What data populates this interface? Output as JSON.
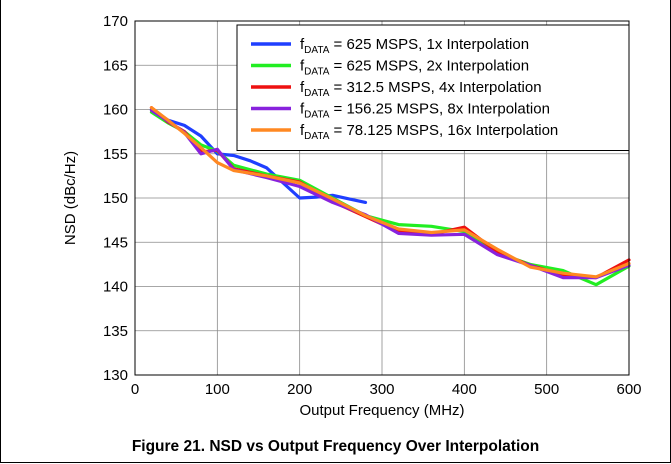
{
  "caption": "Figure 21. NSD vs Output Frequency Over Interpolation",
  "chart_data": {
    "type": "line",
    "title": "",
    "xlabel": "Output Frequency (MHz)",
    "ylabel": "NSD (dBc/Hz)",
    "xlim": [
      0,
      600
    ],
    "ylim": [
      130,
      170
    ],
    "xticks": [
      0,
      100,
      200,
      300,
      400,
      500,
      600
    ],
    "yticks": [
      130,
      135,
      140,
      145,
      150,
      155,
      160,
      165,
      170
    ],
    "grid": true,
    "legend_position": "top-right",
    "series": [
      {
        "name": "fDATA = 625 MSPS, 1x Interpolation",
        "legend": {
          "main": "f",
          "sub": "DATA",
          "rest": " = 625 MSPS, 1x Interpolation"
        },
        "color": "#1f3fff",
        "x": [
          20,
          40,
          60,
          80,
          100,
          120,
          140,
          160,
          180,
          200,
          220,
          240,
          260,
          280
        ],
        "y": [
          160.0,
          158.8,
          158.2,
          157.0,
          155.0,
          154.8,
          154.2,
          153.4,
          151.7,
          150.0,
          150.1,
          150.3,
          149.9,
          149.5
        ]
      },
      {
        "name": "fDATA = 625 MSPS, 2x Interpolation",
        "legend": {
          "main": "f",
          "sub": "DATA",
          "rest": " = 625 MSPS, 2x Interpolation"
        },
        "color": "#22ee22",
        "x": [
          20,
          40,
          60,
          80,
          100,
          120,
          160,
          200,
          240,
          280,
          320,
          360,
          400,
          440,
          480,
          520,
          560,
          600
        ],
        "y": [
          159.7,
          158.5,
          157.5,
          156.0,
          155.3,
          153.7,
          152.7,
          152.0,
          150.0,
          148.0,
          147.0,
          146.8,
          146.2,
          143.8,
          142.5,
          141.8,
          140.2,
          142.3
        ]
      },
      {
        "name": "fDATA = 312.5 MSPS, 4x Interpolation",
        "legend": {
          "main": "f",
          "sub": "DATA",
          "rest": " = 312.5 MSPS, 4x Interpolation"
        },
        "color": "#ee1111",
        "x": [
          20,
          40,
          60,
          80,
          100,
          120,
          160,
          200,
          240,
          280,
          320,
          360,
          400,
          440,
          480,
          520,
          560,
          600
        ],
        "y": [
          160.2,
          158.6,
          157.5,
          155.2,
          155.4,
          153.3,
          152.5,
          151.8,
          149.6,
          147.9,
          146.2,
          145.9,
          146.7,
          143.9,
          142.4,
          141.3,
          141.0,
          143.0
        ]
      },
      {
        "name": "fDATA = 156.25 MSPS, 8x Interpolation",
        "legend": {
          "main": "f",
          "sub": "DATA",
          "rest": " = 156.25 MSPS, 8x Interpolation"
        },
        "color": "#8822dd",
        "x": [
          20,
          40,
          60,
          80,
          100,
          120,
          160,
          200,
          240,
          280,
          320,
          360,
          400,
          440,
          480,
          520,
          560,
          600
        ],
        "y": [
          159.9,
          158.7,
          157.4,
          155.0,
          155.5,
          153.2,
          152.3,
          151.3,
          149.5,
          148.1,
          146.0,
          145.8,
          145.9,
          143.6,
          142.4,
          141.0,
          141.0,
          142.4
        ]
      },
      {
        "name": "fDATA = 78.125 MSPS, 16x Interpolation",
        "legend": {
          "main": "f",
          "sub": "DATA",
          "rest": " = 78.125 MSPS, 16x Interpolation"
        },
        "color": "#ff8822",
        "x": [
          20,
          40,
          60,
          80,
          100,
          120,
          160,
          200,
          240,
          280,
          320,
          360,
          400,
          440,
          480,
          520,
          560,
          600
        ],
        "y": [
          160.2,
          158.8,
          157.3,
          155.7,
          154.0,
          153.1,
          152.5,
          151.7,
          149.9,
          148.0,
          146.5,
          146.1,
          146.4,
          144.2,
          142.2,
          141.5,
          141.1,
          142.6
        ]
      }
    ]
  }
}
